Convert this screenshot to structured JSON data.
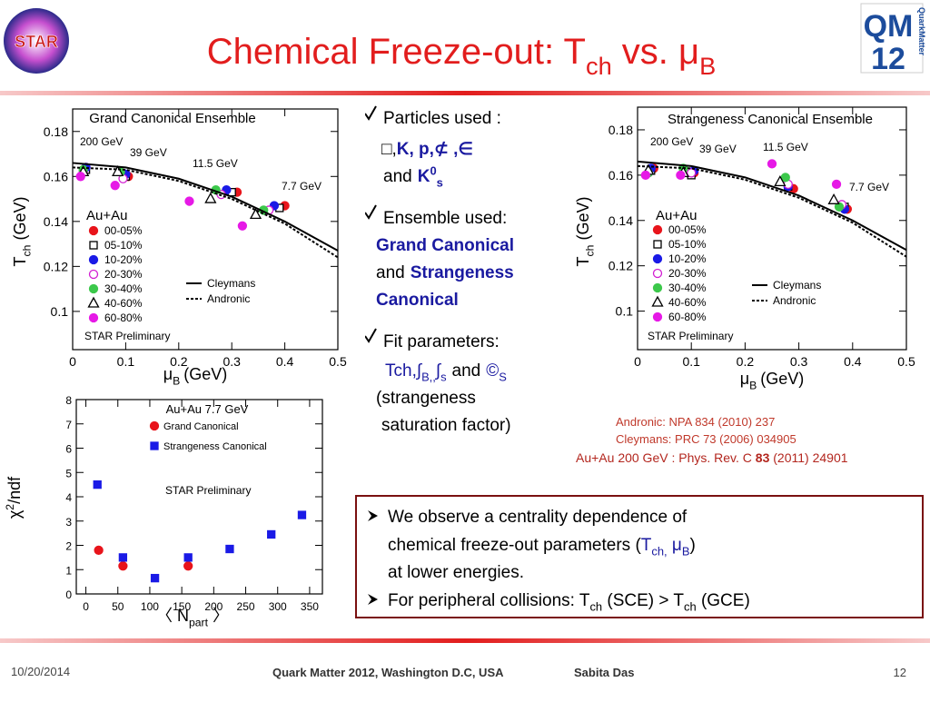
{
  "header": {
    "title_parts": [
      "Chemical Freeze-out: T",
      "ch",
      " vs. ",
      "μ",
      "B"
    ]
  },
  "logos": {
    "left": "STAR",
    "right_main": "QM",
    "right_year": "12",
    "right_side": "QuarkMatter"
  },
  "particles": {
    "label": "Particles used :",
    "list": [
      "□,",
      "K, p,",
      "⊄ ,",
      "∈"
    ],
    "and": "and",
    "k0": [
      "K",
      "0",
      "s"
    ]
  },
  "ensemble": {
    "label": "Ensemble used:",
    "gc": "Grand Canonical",
    "and": "and",
    "sc": [
      "Strangeness",
      "Canonical"
    ]
  },
  "fit": {
    "label": "Fit parameters:",
    "params": [
      "T",
      "ch,",
      "∫",
      "B,,",
      "∫",
      "s"
    ],
    "and": "and",
    "gamma": [
      "©",
      "S"
    ],
    "note": [
      "(strangeness",
      "saturation factor)"
    ]
  },
  "refs": [
    "Andronic: NPA 834 (2010) 237",
    "Cleymans: PRC 73 (2006) 034905"
  ],
  "ref_star": [
    "Au+Au 200 GeV : Phys. Rev. C ",
    "83",
    " (2011) 24901"
  ],
  "conclusions": [
    [
      "We observe a centrality dependence of",
      "chemical freeze-out parameters (",
      "T",
      "ch,",
      " μ",
      "B",
      ")",
      "at lower energies."
    ],
    [
      "For peripheral collisions: T",
      "ch",
      " (SCE) > T",
      "ch",
      " (GCE)"
    ]
  ],
  "footer": {
    "date": "10/20/2014",
    "conference": "Quark Matter 2012, Washington D.C, USA",
    "author": "Sabita Das",
    "page": "12"
  },
  "chart_data": [
    {
      "type": "scatter",
      "title": "Grand Canonical Ensemble",
      "x_label": [
        "μ",
        "B",
        "(GeV)"
      ],
      "y_label": [
        "T",
        "ch",
        "(GeV)"
      ],
      "xlim": [
        0,
        0.5
      ],
      "ylim": [
        0.083,
        0.19
      ],
      "xticks": [
        0,
        0.1,
        0.2,
        0.3,
        0.4,
        0.5
      ],
      "yticks": [
        0.1,
        0.12,
        0.14,
        0.16,
        0.18
      ],
      "annotations": [
        "200 GeV",
        "39 GeV",
        "11.5 GeV",
        "7.7 GeV",
        "Au+Au",
        "STAR Preliminary"
      ],
      "series": [
        {
          "name": "00-05%",
          "color": "#e8141b",
          "marker": "circle",
          "filled": true,
          "x": [
            0.025,
            0.105,
            0.31,
            0.4
          ],
          "values": [
            0.164,
            0.16,
            0.153,
            0.147
          ]
        },
        {
          "name": "05-10%",
          "color": "#000000",
          "marker": "square",
          "filled": false,
          "x": [
            0.025,
            0.1,
            0.3,
            0.39
          ],
          "values": [
            0.163,
            0.16,
            0.153,
            0.146
          ]
        },
        {
          "name": "10-20%",
          "color": "#1a1ae6",
          "marker": "circle",
          "filled": true,
          "x": [
            0.025,
            0.1,
            0.29,
            0.38
          ],
          "values": [
            0.164,
            0.161,
            0.154,
            0.147
          ]
        },
        {
          "name": "20-30%",
          "color": "#d21ed2",
          "marker": "circle",
          "filled": false,
          "x": [
            0.02,
            0.095,
            0.28,
            0.37
          ],
          "values": [
            0.162,
            0.159,
            0.152,
            0.145
          ]
        },
        {
          "name": "30-40%",
          "color": "#3cc84b",
          "marker": "circle",
          "filled": true,
          "x": [
            0.02,
            0.09,
            0.27,
            0.36
          ],
          "values": [
            0.163,
            0.162,
            0.154,
            0.145
          ]
        },
        {
          "name": "40-60%",
          "color": "#000000",
          "marker": "triangle",
          "filled": false,
          "x": [
            0.02,
            0.085,
            0.26,
            0.345
          ],
          "values": [
            0.162,
            0.162,
            0.15,
            0.143
          ]
        },
        {
          "name": "60-80%",
          "color": "#e619e6",
          "marker": "circle",
          "filled": true,
          "x": [
            0.015,
            0.08,
            0.22,
            0.32
          ],
          "values": [
            0.16,
            0.156,
            0.149,
            0.138
          ]
        },
        {
          "name": "Cleymans",
          "color": "#000000",
          "line": "solid",
          "x": [
            0,
            0.1,
            0.2,
            0.3,
            0.4,
            0.5
          ],
          "values": [
            0.166,
            0.164,
            0.159,
            0.151,
            0.14,
            0.127
          ]
        },
        {
          "name": "Andronic",
          "color": "#000000",
          "line": "dotted",
          "x": [
            0,
            0.1,
            0.2,
            0.3,
            0.4,
            0.5
          ],
          "values": [
            0.164,
            0.163,
            0.158,
            0.15,
            0.139,
            0.124
          ]
        }
      ]
    },
    {
      "type": "scatter",
      "title": "Strangeness Canonical Ensemble",
      "x_label": [
        "μ",
        "B",
        "(GeV)"
      ],
      "y_label": [
        "T",
        "ch",
        "(GeV)"
      ],
      "xlim": [
        0,
        0.5
      ],
      "ylim": [
        0.083,
        0.19
      ],
      "xticks": [
        0,
        0.1,
        0.2,
        0.3,
        0.4,
        0.5
      ],
      "yticks": [
        0.1,
        0.12,
        0.14,
        0.16,
        0.18
      ],
      "annotations": [
        "200 GeV",
        "39 GeV",
        "11.5 GeV",
        "7.7 GeV",
        "Au+Au",
        "STAR Preliminary"
      ],
      "series": [
        {
          "name": "00-05%",
          "color": "#e8141b",
          "marker": "circle",
          "filled": true,
          "x": [
            0.03,
            0.105,
            0.29,
            0.39
          ],
          "values": [
            0.163,
            0.161,
            0.154,
            0.145
          ]
        },
        {
          "name": "05-10%",
          "color": "#000000",
          "marker": "square",
          "filled": false,
          "x": [
            0.025,
            0.1,
            0.28,
            0.385
          ],
          "values": [
            0.162,
            0.16,
            0.155,
            0.146
          ]
        },
        {
          "name": "10-20%",
          "color": "#1a1ae6",
          "marker": "circle",
          "filled": true,
          "x": [
            0.025,
            0.105,
            0.28,
            0.385
          ],
          "values": [
            0.163,
            0.162,
            0.155,
            0.145
          ]
        },
        {
          "name": "20-30%",
          "color": "#d21ed2",
          "marker": "circle",
          "filled": false,
          "x": [
            0.02,
            0.1,
            0.28,
            0.38
          ],
          "values": [
            0.161,
            0.161,
            0.156,
            0.147
          ]
        },
        {
          "name": "30-40%",
          "color": "#3cc84b",
          "marker": "circle",
          "filled": true,
          "x": [
            0.02,
            0.085,
            0.275,
            0.375
          ],
          "values": [
            0.161,
            0.163,
            0.159,
            0.146
          ]
        },
        {
          "name": "40-60%",
          "color": "#000000",
          "marker": "triangle",
          "filled": false,
          "x": [
            0.02,
            0.085,
            0.265,
            0.365
          ],
          "values": [
            0.162,
            0.161,
            0.157,
            0.149
          ]
        },
        {
          "name": "60-80%",
          "color": "#e619e6",
          "marker": "circle",
          "filled": true,
          "x": [
            0.015,
            0.08,
            0.25,
            0.37
          ],
          "values": [
            0.16,
            0.16,
            0.165,
            0.156
          ]
        },
        {
          "name": "Cleymans",
          "color": "#000000",
          "line": "solid",
          "x": [
            0,
            0.1,
            0.2,
            0.3,
            0.4,
            0.5
          ],
          "values": [
            0.166,
            0.164,
            0.159,
            0.151,
            0.14,
            0.127
          ]
        },
        {
          "name": "Andronic",
          "color": "#000000",
          "line": "dotted",
          "x": [
            0,
            0.1,
            0.2,
            0.3,
            0.4,
            0.5
          ],
          "values": [
            0.164,
            0.163,
            0.158,
            0.15,
            0.139,
            0.124
          ]
        }
      ]
    },
    {
      "type": "scatter",
      "title": "Au+Au 7.7 GeV",
      "x_label": [
        "〈 N",
        "part",
        " 〉"
      ],
      "y_label": [
        "χ",
        "2",
        "/ndf"
      ],
      "xlim": [
        -15,
        370
      ],
      "ylim": [
        0,
        8
      ],
      "xticks": [
        0,
        50,
        100,
        150,
        200,
        250,
        300,
        350
      ],
      "yticks": [
        0,
        1,
        2,
        3,
        4,
        5,
        6,
        7,
        8
      ],
      "annotations": [
        "STAR Preliminary"
      ],
      "series": [
        {
          "name": "Grand Canonical",
          "color": "#e8141b",
          "marker": "circle",
          "filled": true,
          "x": [
            20,
            58,
            160
          ],
          "values": [
            1.8,
            1.15,
            1.15
          ]
        },
        {
          "name": "Strangeness Canonical",
          "color": "#1a1ae6",
          "marker": "square",
          "filled": true,
          "x": [
            18,
            58,
            108,
            160,
            225,
            290,
            338
          ],
          "values": [
            4.5,
            1.5,
            0.65,
            1.5,
            1.85,
            2.45,
            3.25
          ]
        }
      ]
    }
  ]
}
